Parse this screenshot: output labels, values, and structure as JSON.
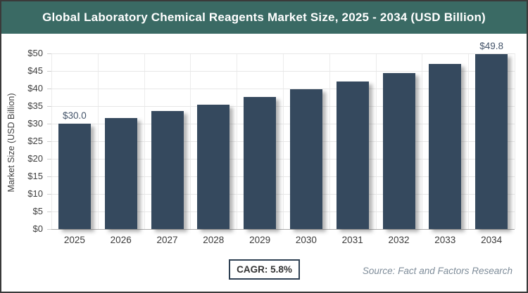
{
  "header": {
    "title": "Global Laboratory Chemical Reagents Market Size, 2025 - 2034 (USD Billion)"
  },
  "chart_data": {
    "type": "bar",
    "title": "Global Laboratory Chemical Reagents Market Size, 2025 - 2034 (USD Billion)",
    "categories": [
      "2025",
      "2026",
      "2027",
      "2028",
      "2029",
      "2030",
      "2031",
      "2032",
      "2033",
      "2034"
    ],
    "values": [
      30.0,
      31.7,
      33.6,
      35.5,
      37.6,
      39.8,
      42.1,
      44.5,
      47.1,
      49.8
    ],
    "point_labels": [
      "$30.0",
      "",
      "",
      "",
      "",
      "",
      "",
      "",
      "",
      "$49.8"
    ],
    "xlabel": "",
    "ylabel": "Market Size (USD Billion)",
    "ylim": [
      0,
      50
    ],
    "ytick_step": 5,
    "ytick_labels": [
      "$0",
      "$5",
      "$10",
      "$15",
      "$20",
      "$25",
      "$30",
      "$35",
      "$40",
      "$45",
      "$50"
    ],
    "grid": true,
    "legend": "none",
    "bar_color": "#35495e",
    "label_color": "#44546a"
  },
  "footer": {
    "cagr_label": "CAGR: 5.8%",
    "source": "Source: Fact and Factors Research"
  }
}
